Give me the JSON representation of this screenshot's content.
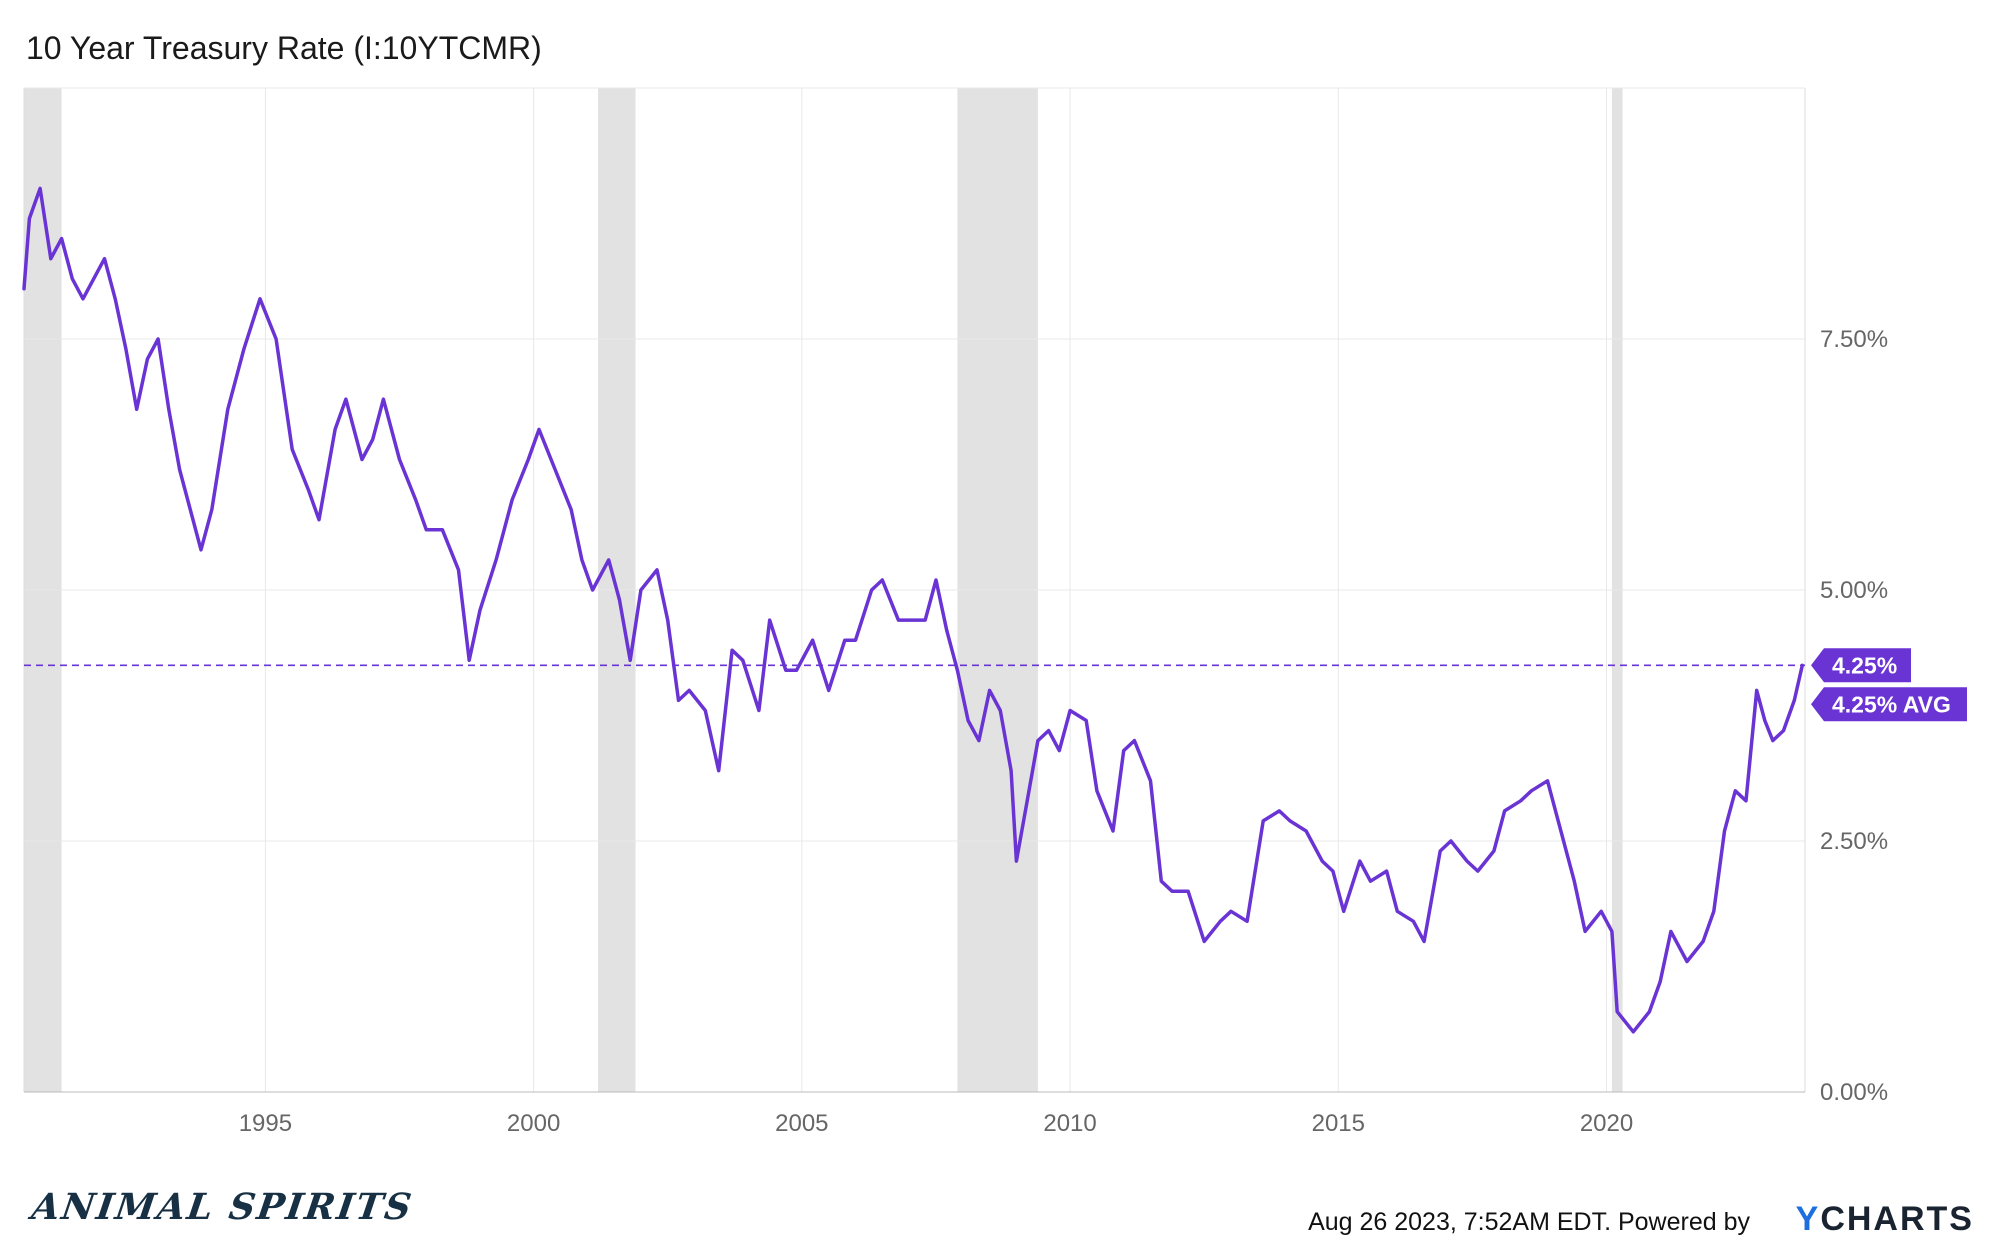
{
  "chart_data": {
    "type": "line",
    "title": "10 Year Treasury Rate (I:10YTCMR)",
    "xlabel": "",
    "ylabel": "",
    "x_ticks": [
      "1995",
      "2000",
      "2005",
      "2010",
      "2015",
      "2020"
    ],
    "y_ticks": [
      "7.50%",
      "5.00%",
      "2.50%",
      "0.00%"
    ],
    "xlim": [
      1990.5,
      2023.7
    ],
    "ylim": [
      0,
      10
    ],
    "grid": true,
    "recessions": [
      [
        1990.5,
        1991.2
      ],
      [
        2001.2,
        2001.9
      ],
      [
        2007.9,
        2009.4
      ],
      [
        2020.1,
        2020.3
      ]
    ],
    "series": [
      {
        "name": "",
        "color": "#6a34d4",
        "points": [
          [
            1990.5,
            8.0
          ],
          [
            1990.6,
            8.7
          ],
          [
            1990.8,
            9.0
          ],
          [
            1991.0,
            8.3
          ],
          [
            1991.2,
            8.5
          ],
          [
            1991.4,
            8.1
          ],
          [
            1991.6,
            7.9
          ],
          [
            1991.8,
            8.1
          ],
          [
            1992.0,
            8.3
          ],
          [
            1992.2,
            7.9
          ],
          [
            1992.4,
            7.4
          ],
          [
            1992.6,
            6.8
          ],
          [
            1992.8,
            7.3
          ],
          [
            1993.0,
            7.5
          ],
          [
            1993.2,
            6.8
          ],
          [
            1993.4,
            6.2
          ],
          [
            1993.6,
            5.8
          ],
          [
            1993.8,
            5.4
          ],
          [
            1994.0,
            5.8
          ],
          [
            1994.3,
            6.8
          ],
          [
            1994.6,
            7.4
          ],
          [
            1994.9,
            7.9
          ],
          [
            1995.2,
            7.5
          ],
          [
            1995.5,
            6.4
          ],
          [
            1995.8,
            6.0
          ],
          [
            1996.0,
            5.7
          ],
          [
            1996.3,
            6.6
          ],
          [
            1996.5,
            6.9
          ],
          [
            1996.8,
            6.3
          ],
          [
            1997.0,
            6.5
          ],
          [
            1997.2,
            6.9
          ],
          [
            1997.5,
            6.3
          ],
          [
            1997.8,
            5.9
          ],
          [
            1998.0,
            5.6
          ],
          [
            1998.3,
            5.6
          ],
          [
            1998.6,
            5.2
          ],
          [
            1998.8,
            4.3
          ],
          [
            1999.0,
            4.8
          ],
          [
            1999.3,
            5.3
          ],
          [
            1999.6,
            5.9
          ],
          [
            1999.9,
            6.3
          ],
          [
            2000.1,
            6.6
          ],
          [
            2000.4,
            6.2
          ],
          [
            2000.7,
            5.8
          ],
          [
            2000.9,
            5.3
          ],
          [
            2001.1,
            5.0
          ],
          [
            2001.4,
            5.3
          ],
          [
            2001.6,
            4.9
          ],
          [
            2001.8,
            4.3
          ],
          [
            2002.0,
            5.0
          ],
          [
            2002.3,
            5.2
          ],
          [
            2002.5,
            4.7
          ],
          [
            2002.7,
            3.9
          ],
          [
            2002.9,
            4.0
          ],
          [
            2003.2,
            3.8
          ],
          [
            2003.45,
            3.2
          ],
          [
            2003.7,
            4.4
          ],
          [
            2003.9,
            4.3
          ],
          [
            2004.2,
            3.8
          ],
          [
            2004.4,
            4.7
          ],
          [
            2004.7,
            4.2
          ],
          [
            2004.9,
            4.2
          ],
          [
            2005.2,
            4.5
          ],
          [
            2005.5,
            4.0
          ],
          [
            2005.8,
            4.5
          ],
          [
            2006.0,
            4.5
          ],
          [
            2006.3,
            5.0
          ],
          [
            2006.5,
            5.1
          ],
          [
            2006.8,
            4.7
          ],
          [
            2007.0,
            4.7
          ],
          [
            2007.3,
            4.7
          ],
          [
            2007.5,
            5.1
          ],
          [
            2007.7,
            4.6
          ],
          [
            2007.9,
            4.2
          ],
          [
            2008.1,
            3.7
          ],
          [
            2008.3,
            3.5
          ],
          [
            2008.5,
            4.0
          ],
          [
            2008.7,
            3.8
          ],
          [
            2008.9,
            3.2
          ],
          [
            2009.0,
            2.3
          ],
          [
            2009.2,
            2.9
          ],
          [
            2009.4,
            3.5
          ],
          [
            2009.6,
            3.6
          ],
          [
            2009.8,
            3.4
          ],
          [
            2010.0,
            3.8
          ],
          [
            2010.3,
            3.7
          ],
          [
            2010.5,
            3.0
          ],
          [
            2010.8,
            2.6
          ],
          [
            2011.0,
            3.4
          ],
          [
            2011.2,
            3.5
          ],
          [
            2011.5,
            3.1
          ],
          [
            2011.7,
            2.1
          ],
          [
            2011.9,
            2.0
          ],
          [
            2012.2,
            2.0
          ],
          [
            2012.5,
            1.5
          ],
          [
            2012.8,
            1.7
          ],
          [
            2013.0,
            1.8
          ],
          [
            2013.3,
            1.7
          ],
          [
            2013.6,
            2.7
          ],
          [
            2013.9,
            2.8
          ],
          [
            2014.1,
            2.7
          ],
          [
            2014.4,
            2.6
          ],
          [
            2014.7,
            2.3
          ],
          [
            2014.9,
            2.2
          ],
          [
            2015.1,
            1.8
          ],
          [
            2015.4,
            2.3
          ],
          [
            2015.6,
            2.1
          ],
          [
            2015.9,
            2.2
          ],
          [
            2016.1,
            1.8
          ],
          [
            2016.4,
            1.7
          ],
          [
            2016.6,
            1.5
          ],
          [
            2016.9,
            2.4
          ],
          [
            2017.1,
            2.5
          ],
          [
            2017.4,
            2.3
          ],
          [
            2017.6,
            2.2
          ],
          [
            2017.9,
            2.4
          ],
          [
            2018.1,
            2.8
          ],
          [
            2018.4,
            2.9
          ],
          [
            2018.6,
            3.0
          ],
          [
            2018.9,
            3.1
          ],
          [
            2019.1,
            2.7
          ],
          [
            2019.4,
            2.1
          ],
          [
            2019.6,
            1.6
          ],
          [
            2019.9,
            1.8
          ],
          [
            2020.1,
            1.6
          ],
          [
            2020.2,
            0.8
          ],
          [
            2020.5,
            0.6
          ],
          [
            2020.8,
            0.8
          ],
          [
            2021.0,
            1.1
          ],
          [
            2021.2,
            1.6
          ],
          [
            2021.5,
            1.3
          ],
          [
            2021.8,
            1.5
          ],
          [
            2022.0,
            1.8
          ],
          [
            2022.2,
            2.6
          ],
          [
            2022.4,
            3.0
          ],
          [
            2022.6,
            2.9
          ],
          [
            2022.8,
            4.0
          ],
          [
            2022.95,
            3.7
          ],
          [
            2023.1,
            3.5
          ],
          [
            2023.3,
            3.6
          ],
          [
            2023.5,
            3.9
          ],
          [
            2023.65,
            4.25
          ]
        ]
      }
    ],
    "reference_line": {
      "value": 4.25,
      "color": "#6a34d4"
    },
    "flags": [
      {
        "text": "4.25%",
        "value": 4.25
      },
      {
        "text": "4.25% AVG",
        "value": 4.25
      }
    ]
  },
  "footer": {
    "timestamp": "Aug 26 2023, 7:52AM EDT. Powered by",
    "logo_y": "Y",
    "logo_rest": "CHARTS",
    "brand": "ANIMAL SPIRITS"
  }
}
